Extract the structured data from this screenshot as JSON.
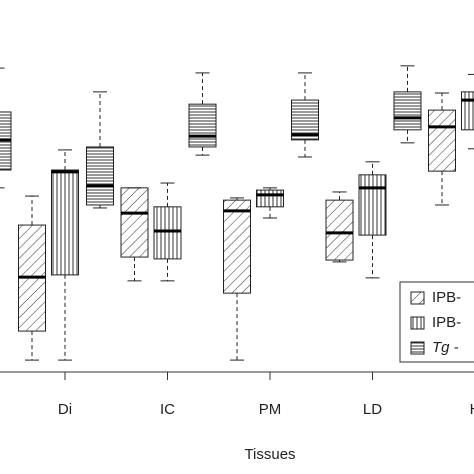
{
  "chart_data": {
    "type": "box",
    "x_label": "Tissues",
    "categories": [
      null,
      "Di",
      "IC",
      "PM",
      "LD",
      "H"
    ],
    "ylim": [
      0,
      100
    ],
    "legend": "bottom-right",
    "series": [
      {
        "name": "IPB-",
        "pattern": "diagonal",
        "color": "#222222",
        "min": [
          null,
          3.2,
          24.5,
          3.2,
          29.6,
          44.9
        ],
        "q1": [
          null,
          11.0,
          30.9,
          21.2,
          30.1,
          54.0
        ],
        "median": [
          null,
          25.5,
          42.7,
          43.3,
          37.4,
          65.9
        ],
        "q3": [
          null,
          39.5,
          49.5,
          46.2,
          46.2,
          70.4
        ],
        "max": [
          null,
          47.3,
          49.5,
          46.8,
          48.4,
          75.0
        ]
      },
      {
        "name": "IPB-",
        "pattern": "vertical",
        "color": "#222222",
        "min": [
          null,
          3.2,
          24.5,
          41.4,
          25.3,
          60.0
        ],
        "q1": [
          null,
          26.1,
          30.4,
          44.4,
          36.8,
          65.1
        ],
        "median": [
          null,
          53.8,
          37.9,
          47.6,
          49.5,
          73.1
        ],
        "q3": [
          null,
          54.3,
          44.4,
          48.9,
          53.0,
          75.3
        ],
        "max": [
          null,
          59.7,
          50.8,
          49.5,
          56.5,
          80.0
        ]
      },
      {
        "name": "Tg -",
        "pattern": "horizontal",
        "color": "#222222",
        "min": [
          49.5,
          44.1,
          58.3,
          57.8,
          61.6,
          null
        ],
        "q1": [
          54.3,
          44.9,
          60.5,
          62.4,
          65.1,
          null
        ],
        "median": [
          62.4,
          50.0,
          63.4,
          63.7,
          68.3,
          null
        ],
        "q3": [
          69.9,
          60.5,
          72.0,
          73.1,
          75.3,
          null
        ],
        "max": [
          81.7,
          75.3,
          80.4,
          80.4,
          82.3,
          null
        ]
      }
    ]
  }
}
